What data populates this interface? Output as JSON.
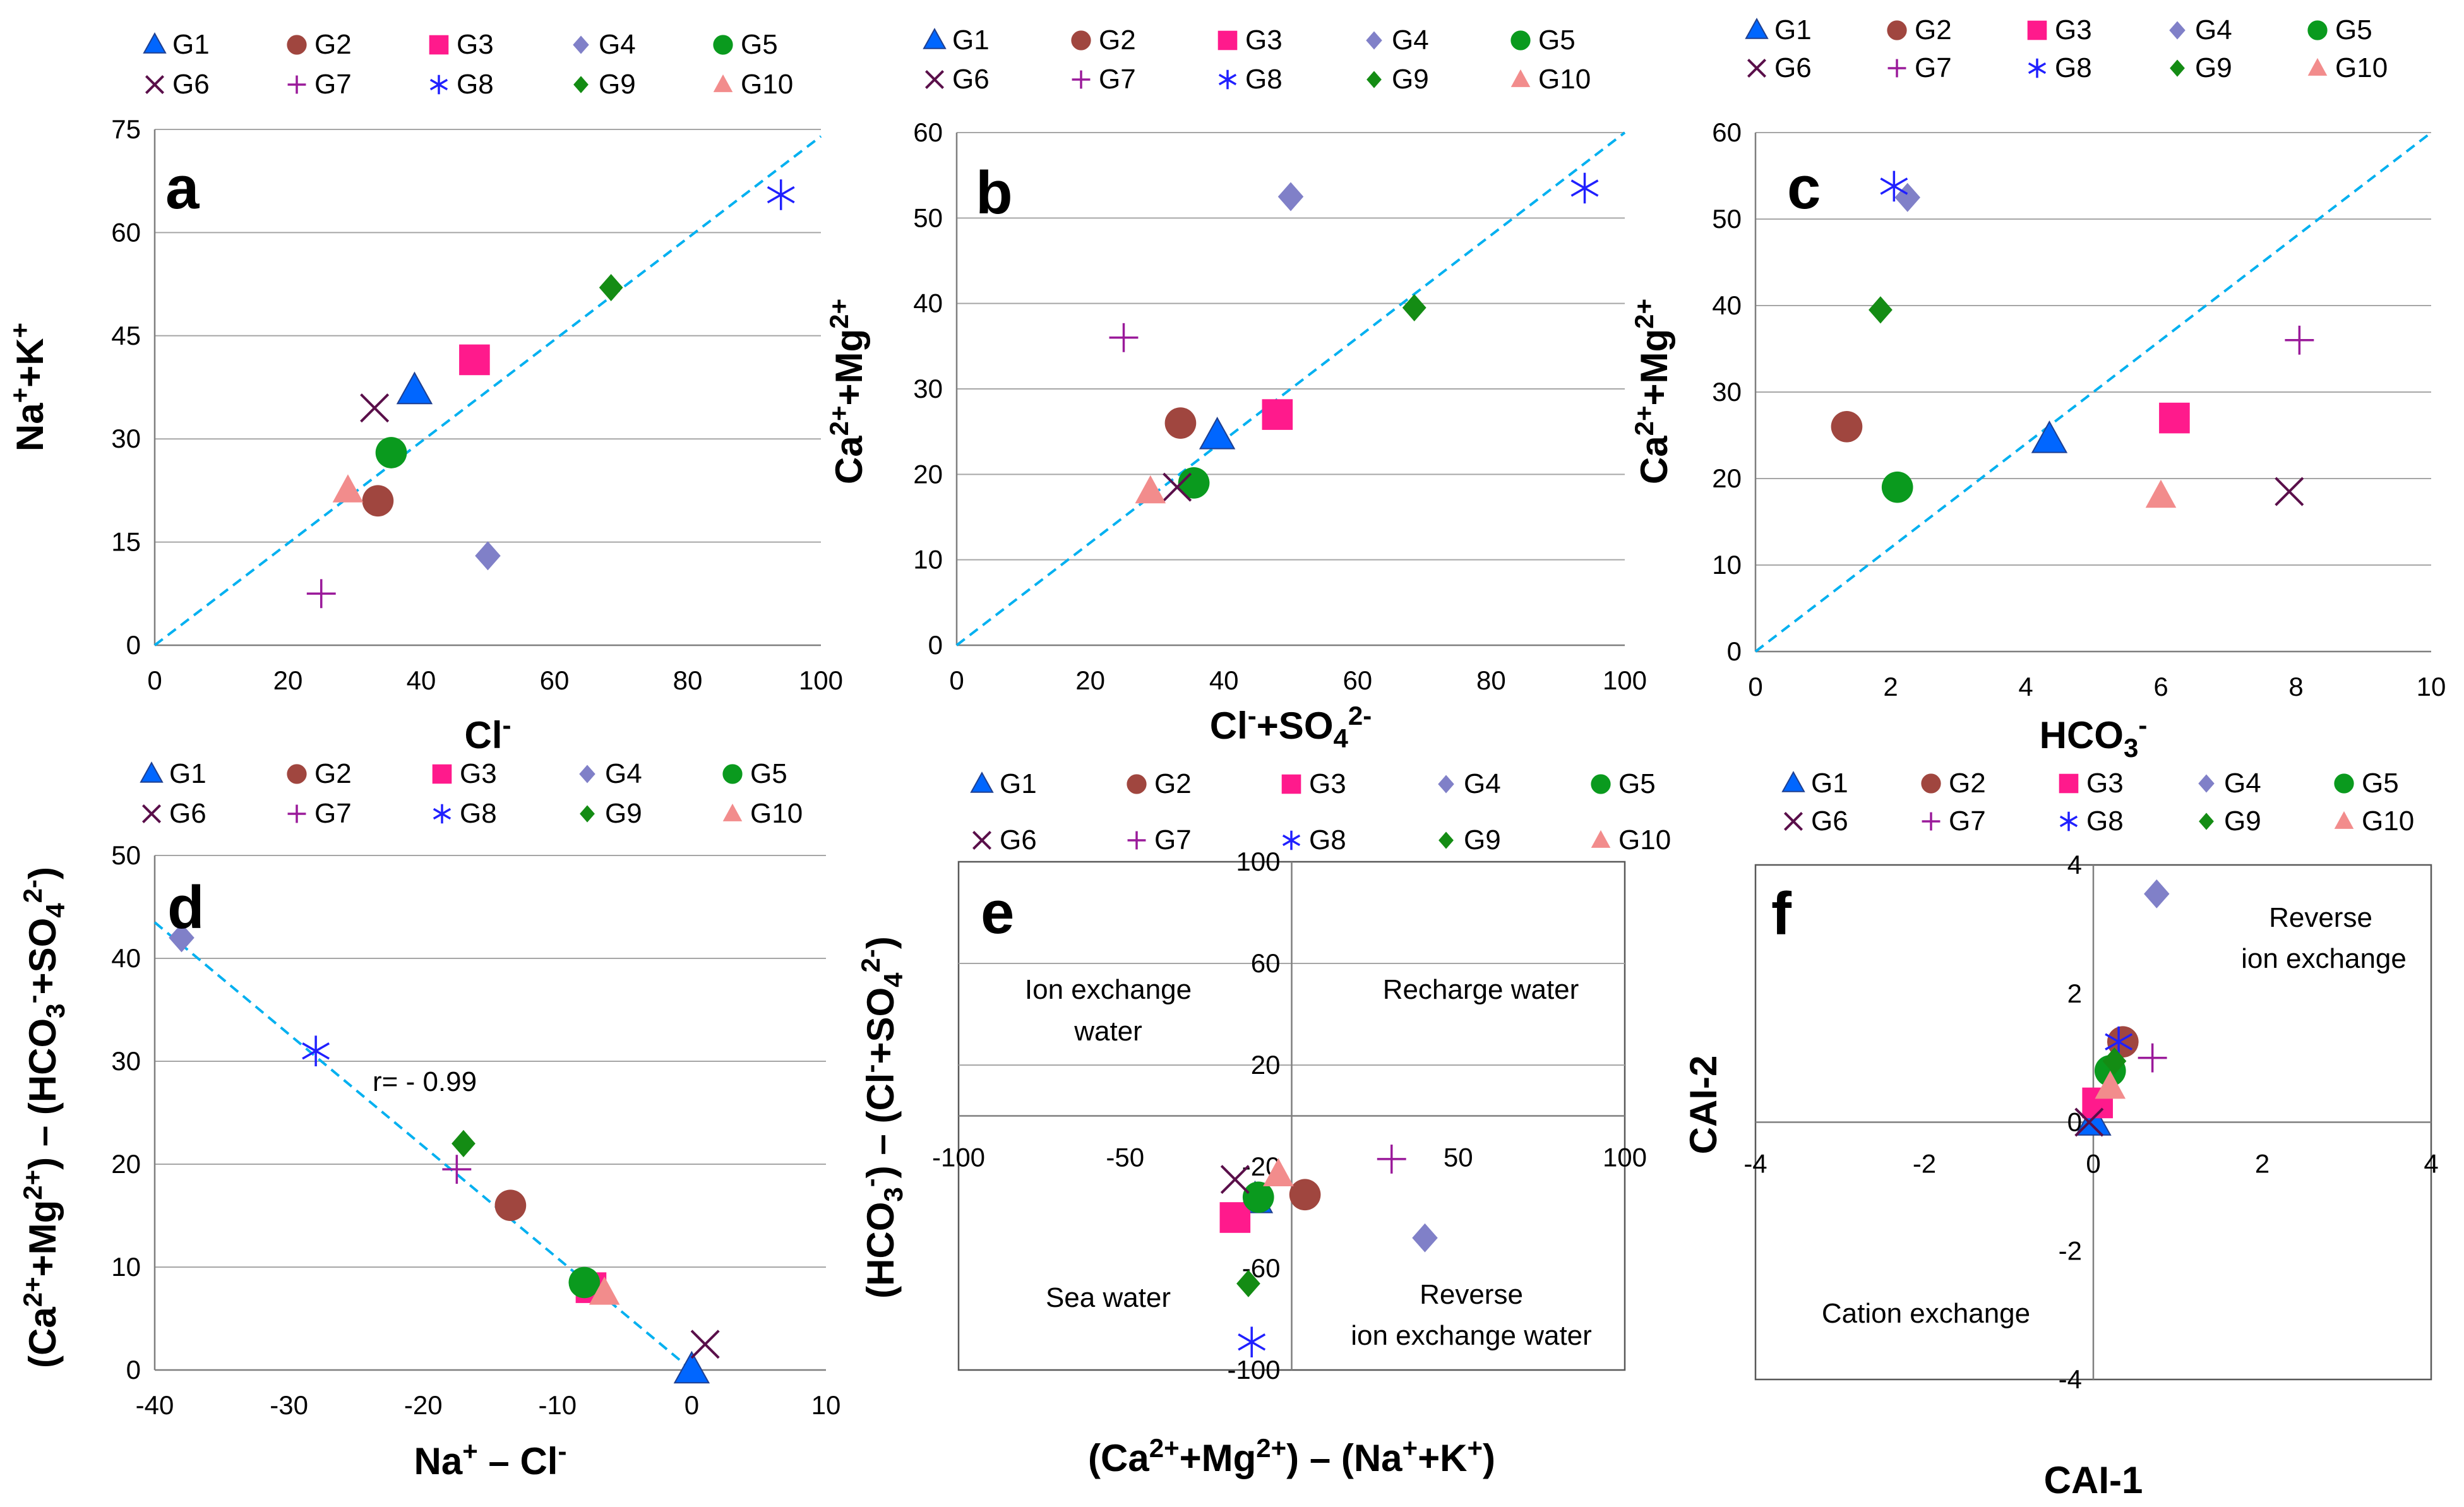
{
  "colors": {
    "G1": "#0066ff",
    "G2": "#a0463f",
    "G3": "#ff1a8c",
    "G4": "#8080c8",
    "G5": "#0a9a1e",
    "G6": "#5a0f4a",
    "G7": "#9a1a9a",
    "G8": "#2020ff",
    "G9": "#148c14",
    "G10": "#f28c8c",
    "fit": "#00b0f0"
  },
  "chart_data": [
    {
      "id": "a",
      "type": "scatter",
      "letter": "a",
      "xlabel": "Cl-",
      "ylabel": "Na++K+",
      "xlim": [
        0,
        100
      ],
      "ylim": [
        0,
        75
      ],
      "xticks": [
        0,
        20,
        40,
        60,
        80,
        100
      ],
      "yticks": [
        0,
        15,
        30,
        45,
        60,
        75
      ],
      "series": [
        {
          "name": "G1",
          "x": 39,
          "y": 37
        },
        {
          "name": "G2",
          "x": 33.5,
          "y": 21
        },
        {
          "name": "G3",
          "x": 48,
          "y": 41.5
        },
        {
          "name": "G4",
          "x": 50,
          "y": 13
        },
        {
          "name": "G5",
          "x": 35.5,
          "y": 28
        },
        {
          "name": "G6",
          "x": 33,
          "y": 34.5
        },
        {
          "name": "G7",
          "x": 25,
          "y": 7.5
        },
        {
          "name": "G8",
          "x": 94,
          "y": 65.5
        },
        {
          "name": "G9",
          "x": 68.5,
          "y": 52
        },
        {
          "name": "G10",
          "x": 29,
          "y": 22.5
        }
      ],
      "fit_line": [
        [
          0,
          0
        ],
        [
          100,
          74
        ]
      ]
    },
    {
      "id": "b",
      "type": "scatter",
      "letter": "b",
      "xlabel": "Cl-+SO42-",
      "ylabel": "Ca2++Mg2+",
      "xlim": [
        0,
        100
      ],
      "ylim": [
        0,
        60
      ],
      "xticks": [
        0,
        20,
        40,
        60,
        80,
        100
      ],
      "yticks": [
        0,
        10,
        20,
        30,
        40,
        50,
        60
      ],
      "series": [
        {
          "name": "G1",
          "x": 39,
          "y": 24.5
        },
        {
          "name": "G2",
          "x": 33.5,
          "y": 26
        },
        {
          "name": "G3",
          "x": 48,
          "y": 27
        },
        {
          "name": "G4",
          "x": 50,
          "y": 52.5
        },
        {
          "name": "G5",
          "x": 35.5,
          "y": 19
        },
        {
          "name": "G6",
          "x": 33,
          "y": 18.5
        },
        {
          "name": "G7",
          "x": 25,
          "y": 36
        },
        {
          "name": "G8",
          "x": 94,
          "y": 53.5
        },
        {
          "name": "G9",
          "x": 68.5,
          "y": 39.5
        },
        {
          "name": "G10",
          "x": 29,
          "y": 18
        }
      ],
      "fit_line": [
        [
          0,
          0
        ],
        [
          100,
          60
        ]
      ]
    },
    {
      "id": "c",
      "type": "scatter",
      "letter": "c",
      "xlabel": "HCO3-",
      "ylabel": "Ca2++Mg2+",
      "xlim": [
        0,
        10
      ],
      "ylim": [
        0,
        60
      ],
      "xticks": [
        0,
        2,
        4,
        6,
        8,
        10
      ],
      "yticks": [
        0,
        10,
        20,
        30,
        40,
        50,
        60
      ],
      "series": [
        {
          "name": "G1",
          "x": 4.35,
          "y": 24.5
        },
        {
          "name": "G2",
          "x": 1.35,
          "y": 26
        },
        {
          "name": "G3",
          "x": 6.2,
          "y": 27
        },
        {
          "name": "G4",
          "x": 2.25,
          "y": 52.5
        },
        {
          "name": "G5",
          "x": 2.1,
          "y": 19
        },
        {
          "name": "G6",
          "x": 7.9,
          "y": 18.5
        },
        {
          "name": "G7",
          "x": 8.05,
          "y": 36
        },
        {
          "name": "G8",
          "x": 2.05,
          "y": 53.8
        },
        {
          "name": "G9",
          "x": 1.85,
          "y": 39.5
        },
        {
          "name": "G10",
          "x": 6.0,
          "y": 18
        }
      ],
      "fit_line": [
        [
          0,
          0
        ],
        [
          10,
          60
        ]
      ]
    },
    {
      "id": "d",
      "type": "scatter",
      "letter": "d",
      "xlabel": "Na+ – Cl-",
      "ylabel": "(Ca2++Mg2+) – (HCO3-+SO42-)",
      "xlim": [
        -40,
        10
      ],
      "ylim": [
        0,
        50
      ],
      "xticks": [
        -40,
        -30,
        -20,
        -10,
        0,
        10
      ],
      "yticks": [
        0,
        10,
        20,
        30,
        40,
        50
      ],
      "annotation": "r= - 0.99",
      "series": [
        {
          "name": "G1",
          "x": 0,
          "y": 0
        },
        {
          "name": "G2",
          "x": -13.5,
          "y": 16
        },
        {
          "name": "G3",
          "x": -7.5,
          "y": 8
        },
        {
          "name": "G4",
          "x": -38,
          "y": 42
        },
        {
          "name": "G5",
          "x": -8,
          "y": 8.5
        },
        {
          "name": "G6",
          "x": 1,
          "y": 2.5
        },
        {
          "name": "G7",
          "x": -17.5,
          "y": 19.5
        },
        {
          "name": "G8",
          "x": -28,
          "y": 31
        },
        {
          "name": "G9",
          "x": -17,
          "y": 22
        },
        {
          "name": "G10",
          "x": -6.5,
          "y": 7.5
        }
      ],
      "fit_line": [
        [
          -40,
          43.5
        ],
        [
          0,
          0
        ]
      ]
    },
    {
      "id": "e",
      "type": "scatter",
      "letter": "e",
      "xlabel": "(Ca2++Mg2+) – (Na++K+)",
      "ylabel": "(HCO3-) – (Cl-+SO42-)",
      "xlim": [
        -100,
        100
      ],
      "ylim": [
        -100,
        100
      ],
      "xticks": [
        -100,
        -50,
        0,
        50,
        100
      ],
      "yticks": [
        -100,
        -60,
        -20,
        20,
        60,
        100
      ],
      "xticklabels": [
        "-100",
        "-50",
        "",
        "50",
        "100"
      ],
      "yticklabels": [
        "-100",
        "-60",
        "-20",
        "20",
        "60",
        "100"
      ],
      "quadrants": [
        "Ion exchange water",
        "Recharge water",
        "Sea water",
        "Reverse ion exchange water"
      ],
      "series": [
        {
          "name": "G1",
          "x": -11,
          "y": -33
        },
        {
          "name": "G2",
          "x": 4,
          "y": -31
        },
        {
          "name": "G3",
          "x": -17,
          "y": -40
        },
        {
          "name": "G4",
          "x": 40,
          "y": -48
        },
        {
          "name": "G5",
          "x": -10,
          "y": -32
        },
        {
          "name": "G6",
          "x": -17,
          "y": -25
        },
        {
          "name": "G7",
          "x": 30,
          "y": -17
        },
        {
          "name": "G8",
          "x": -12,
          "y": -89
        },
        {
          "name": "G9",
          "x": -13,
          "y": -66
        },
        {
          "name": "G10",
          "x": -4,
          "y": -23
        }
      ]
    },
    {
      "id": "f",
      "type": "scatter",
      "letter": "f",
      "xlabel": "CAI-1",
      "ylabel": "CAI-2",
      "xlim": [
        -4,
        4
      ],
      "ylim": [
        -4,
        4
      ],
      "xticks": [
        -4,
        -2,
        0,
        2,
        4
      ],
      "yticks": [
        -4,
        -2,
        0,
        2,
        4
      ],
      "quadrants": [
        "Reverse ion exchange",
        "Cation exchange"
      ],
      "series": [
        {
          "name": "G1",
          "x": 0,
          "y": 0
        },
        {
          "name": "G2",
          "x": 0.35,
          "y": 1.25
        },
        {
          "name": "G3",
          "x": 0.05,
          "y": 0.3
        },
        {
          "name": "G4",
          "x": 0.75,
          "y": 3.55
        },
        {
          "name": "G5",
          "x": 0.2,
          "y": 0.8
        },
        {
          "name": "G6",
          "x": -0.05,
          "y": 0
        },
        {
          "name": "G7",
          "x": 0.7,
          "y": 1.0
        },
        {
          "name": "G8",
          "x": 0.3,
          "y": 1.25
        },
        {
          "name": "G9",
          "x": 0.25,
          "y": 0.95
        },
        {
          "name": "G10",
          "x": 0.2,
          "y": 0.55
        }
      ]
    }
  ]
}
